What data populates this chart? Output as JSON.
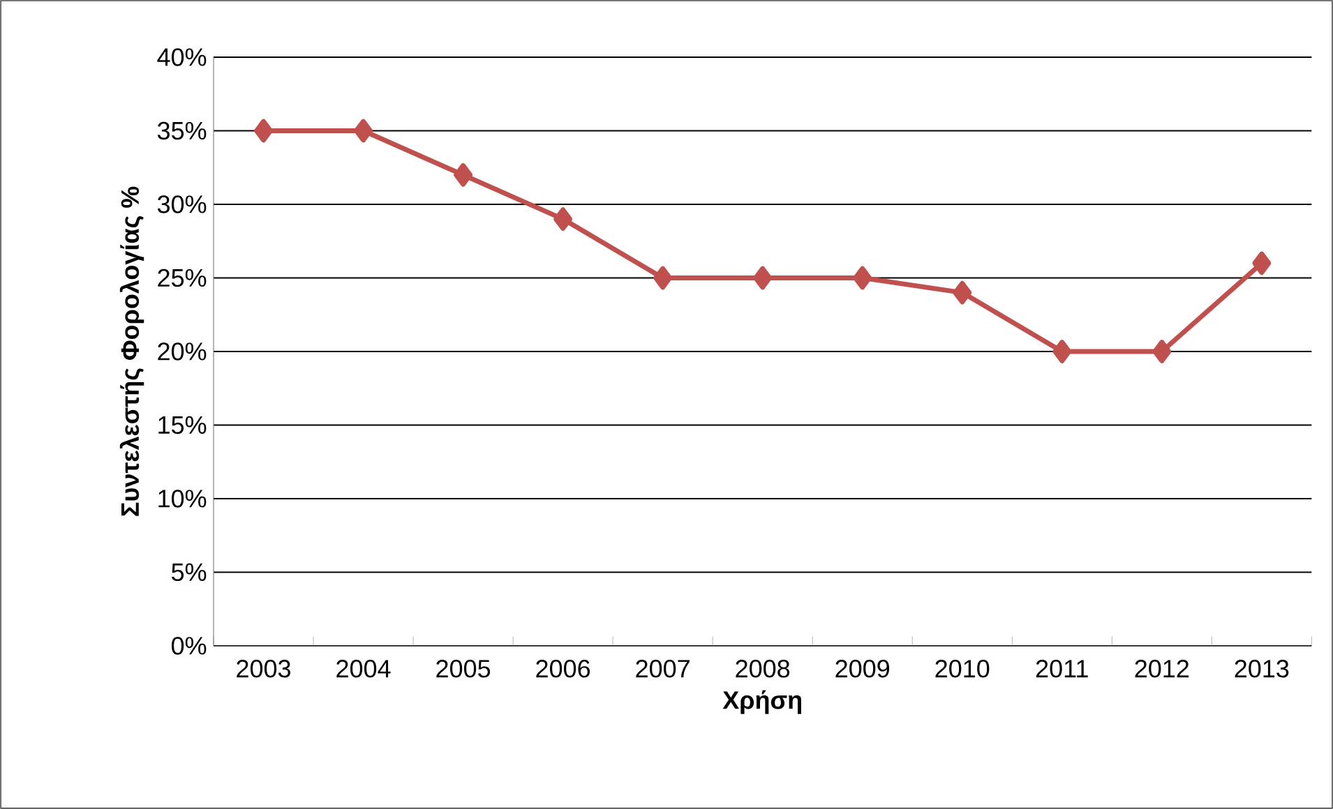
{
  "chart_data": {
    "type": "line",
    "xlabel": "Χρήση",
    "ylabel": "Συντελεστής Φορολογίας %",
    "categories": [
      "2003",
      "2004",
      "2005",
      "2006",
      "2007",
      "2008",
      "2009",
      "2010",
      "2011",
      "2012",
      "2013"
    ],
    "series": [
      {
        "color": "#c0504d",
        "values": [
          35,
          35,
          32,
          29,
          25,
          25,
          25,
          24,
          20,
          20,
          26
        ]
      }
    ],
    "ylim": [
      0,
      40
    ],
    "yticks": [
      {
        "value": 0,
        "label": "0%"
      },
      {
        "value": 5,
        "label": "5%"
      },
      {
        "value": 10,
        "label": "10%"
      },
      {
        "value": 15,
        "label": "15%"
      },
      {
        "value": 20,
        "label": "20%"
      },
      {
        "value": 25,
        "label": "25%"
      },
      {
        "value": 30,
        "label": "30%"
      },
      {
        "value": 35,
        "label": "35%"
      },
      {
        "value": 40,
        "label": "40%"
      }
    ],
    "grid": "y",
    "marker": "diamond",
    "line_style": "solid"
  }
}
